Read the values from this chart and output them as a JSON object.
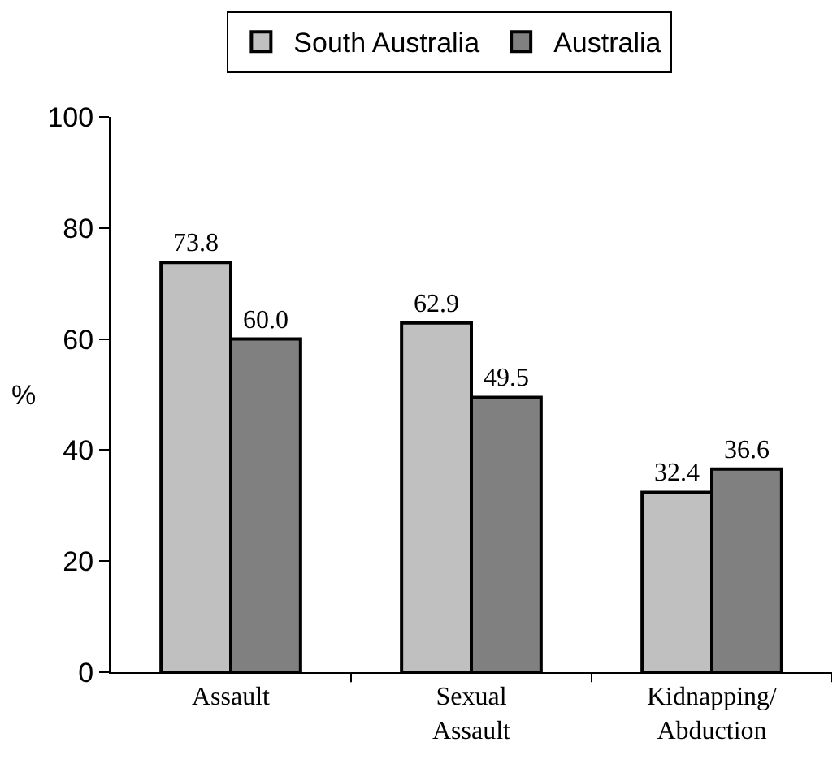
{
  "chart_data": {
    "type": "bar",
    "categories": [
      "Assault",
      "Sexual Assault",
      "Kidnapping/Abduction"
    ],
    "series": [
      {
        "name": "South Australia",
        "color": "#c0c0c0",
        "values": [
          73.8,
          62.9,
          32.4
        ],
        "value_labels": [
          "73.8",
          "62.9",
          "32.4"
        ]
      },
      {
        "name": "Australia",
        "color": "#808080",
        "values": [
          60.0,
          49.5,
          36.6
        ],
        "value_labels": [
          "60.0",
          "49.5",
          "36.6"
        ]
      }
    ],
    "ylabel": "%",
    "ylim": [
      0,
      100
    ],
    "yticks": [
      0,
      20,
      40,
      60,
      80,
      100
    ],
    "grid": false,
    "legend": "top"
  }
}
